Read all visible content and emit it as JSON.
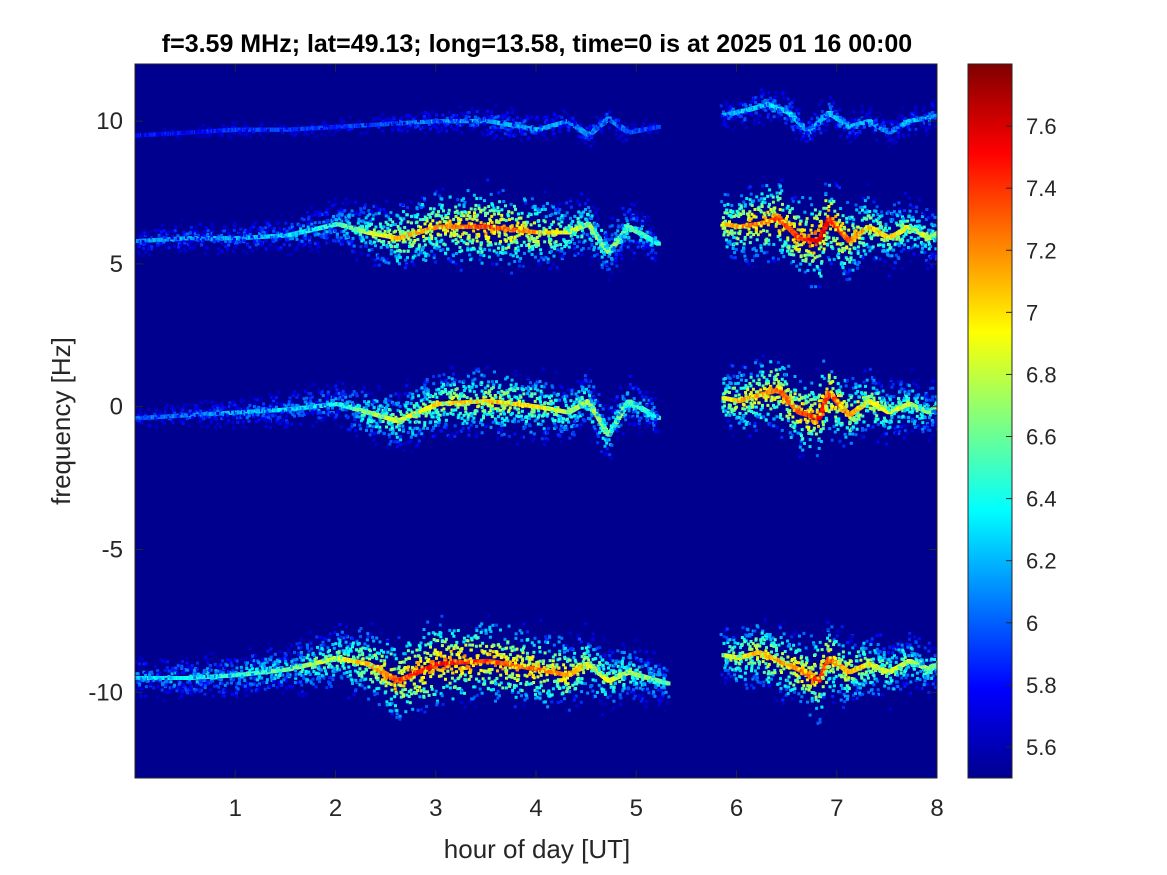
{
  "chart_data": {
    "type": "heatmap",
    "title": "f=3.59 MHz;  lat=49.13; long=13.58, time=0 is at 2025 01 16 00:00",
    "xlabel": "hour of day [UT]",
    "ylabel": "frequency [Hz]",
    "xlim": [
      0,
      8
    ],
    "ylim": [
      -13,
      12
    ],
    "x_ticks": [
      1,
      2,
      3,
      4,
      5,
      6,
      7,
      8
    ],
    "y_ticks": [
      10,
      5,
      0,
      -5,
      -10
    ],
    "colorbar": {
      "range": [
        5.5,
        7.8
      ],
      "ticks": [
        5.6,
        5.8,
        6,
        6.2,
        6.4,
        6.6,
        6.8,
        7,
        7.2,
        7.4,
        7.6
      ],
      "colormap": "jet"
    },
    "background_value": 5.5,
    "data_gap": {
      "x_start": 5.3,
      "x_end": 5.8
    },
    "series": [
      {
        "segments": [
          {
            "x": [
              0.0,
              0.5,
              1.0,
              1.5,
              2.0,
              2.5,
              3.0,
              3.5,
              4.0,
              4.3,
              4.5,
              4.7,
              4.9,
              5.2
            ],
            "y": [
              9.5,
              9.6,
              9.7,
              9.7,
              9.8,
              9.9,
              10.0,
              10.0,
              9.7,
              10.0,
              9.5,
              10.1,
              9.6,
              9.8
            ],
            "intensity": [
              5.8,
              5.8,
              5.9,
              5.9,
              5.9,
              6.0,
              6.1,
              6.2,
              6.2,
              6.1,
              6.1,
              6.1,
              6.0,
              5.9
            ]
          },
          {
            "x": [
              5.85,
              6.1,
              6.3,
              6.5,
              6.7,
              6.9,
              7.1,
              7.3,
              7.5,
              7.7,
              8.0
            ],
            "y": [
              10.2,
              10.4,
              10.6,
              10.3,
              9.6,
              10.3,
              9.8,
              10.0,
              9.6,
              10.0,
              10.2
            ],
            "intensity": [
              6.2,
              6.3,
              6.3,
              6.3,
              6.2,
              6.3,
              6.2,
              6.2,
              6.1,
              6.2,
              6.2
            ]
          }
        ]
      },
      {
        "segments": [
          {
            "x": [
              0.0,
              0.5,
              1.0,
              1.5,
              2.0,
              2.3,
              2.6,
              3.0,
              3.5,
              4.0,
              4.3,
              4.5,
              4.7,
              4.9,
              5.2
            ],
            "y": [
              5.8,
              5.9,
              5.9,
              6.0,
              6.4,
              6.1,
              5.9,
              6.3,
              6.3,
              6.1,
              6.1,
              6.4,
              5.4,
              6.3,
              5.7
            ],
            "intensity": [
              6.1,
              6.2,
              6.2,
              6.3,
              6.5,
              6.8,
              7.1,
              7.2,
              7.4,
              7.2,
              6.9,
              6.8,
              6.7,
              6.6,
              6.4
            ]
          },
          {
            "x": [
              5.85,
              6.0,
              6.2,
              6.4,
              6.6,
              6.8,
              6.9,
              7.1,
              7.3,
              7.5,
              7.7,
              7.9,
              8.0
            ],
            "y": [
              6.4,
              6.3,
              6.4,
              6.6,
              5.9,
              5.8,
              6.6,
              5.8,
              6.3,
              5.9,
              6.3,
              5.9,
              6.1
            ],
            "intensity": [
              7.0,
              7.2,
              7.3,
              7.4,
              7.4,
              7.6,
              7.5,
              7.3,
              7.1,
              7.0,
              6.9,
              6.8,
              6.7
            ]
          }
        ]
      },
      {
        "segments": [
          {
            "x": [
              0.0,
              0.5,
              1.0,
              1.5,
              2.0,
              2.3,
              2.6,
              3.0,
              3.5,
              4.0,
              4.3,
              4.5,
              4.7,
              4.9,
              5.2
            ],
            "y": [
              -0.4,
              -0.3,
              -0.2,
              -0.1,
              0.1,
              -0.2,
              -0.5,
              0.1,
              0.2,
              0.0,
              -0.2,
              0.2,
              -1.0,
              0.2,
              -0.4
            ],
            "intensity": [
              6.0,
              6.1,
              6.2,
              6.3,
              6.4,
              6.7,
              6.9,
              7.0,
              7.1,
              7.0,
              6.8,
              6.8,
              6.7,
              6.6,
              6.4
            ]
          },
          {
            "x": [
              5.85,
              6.0,
              6.2,
              6.4,
              6.6,
              6.8,
              6.9,
              7.1,
              7.3,
              7.5,
              7.7,
              7.9,
              8.0
            ],
            "y": [
              0.3,
              0.2,
              0.4,
              0.6,
              -0.2,
              -0.4,
              0.5,
              -0.3,
              0.2,
              -0.2,
              0.1,
              -0.2,
              0.1
            ],
            "intensity": [
              6.9,
              7.1,
              7.2,
              7.3,
              7.3,
              7.5,
              7.4,
              7.2,
              7.0,
              6.9,
              6.8,
              6.7,
              6.6
            ]
          }
        ]
      },
      {
        "segments": [
          {
            "x": [
              0.0,
              0.5,
              1.0,
              1.5,
              2.0,
              2.3,
              2.6,
              3.0,
              3.5,
              4.0,
              4.3,
              4.5,
              4.7,
              4.9,
              5.3
            ],
            "y": [
              -9.5,
              -9.5,
              -9.4,
              -9.2,
              -8.8,
              -9.0,
              -9.6,
              -9.0,
              -8.9,
              -9.2,
              -9.4,
              -9.0,
              -9.6,
              -9.3,
              -9.7
            ],
            "intensity": [
              6.3,
              6.4,
              6.5,
              6.6,
              6.9,
              7.1,
              7.4,
              7.5,
              7.4,
              7.3,
              7.2,
              7.0,
              6.9,
              6.8,
              6.5
            ]
          },
          {
            "x": [
              5.85,
              6.0,
              6.2,
              6.4,
              6.6,
              6.8,
              6.9,
              7.1,
              7.3,
              7.5,
              7.7,
              7.9,
              8.0
            ],
            "y": [
              -8.7,
              -8.8,
              -8.6,
              -8.9,
              -9.2,
              -9.6,
              -8.8,
              -9.3,
              -9.0,
              -9.3,
              -8.9,
              -9.2,
              -9.0
            ],
            "intensity": [
              6.8,
              7.0,
              7.1,
              7.2,
              7.2,
              7.5,
              7.3,
              7.1,
              7.0,
              6.9,
              6.8,
              6.7,
              6.6
            ]
          }
        ]
      }
    ]
  }
}
